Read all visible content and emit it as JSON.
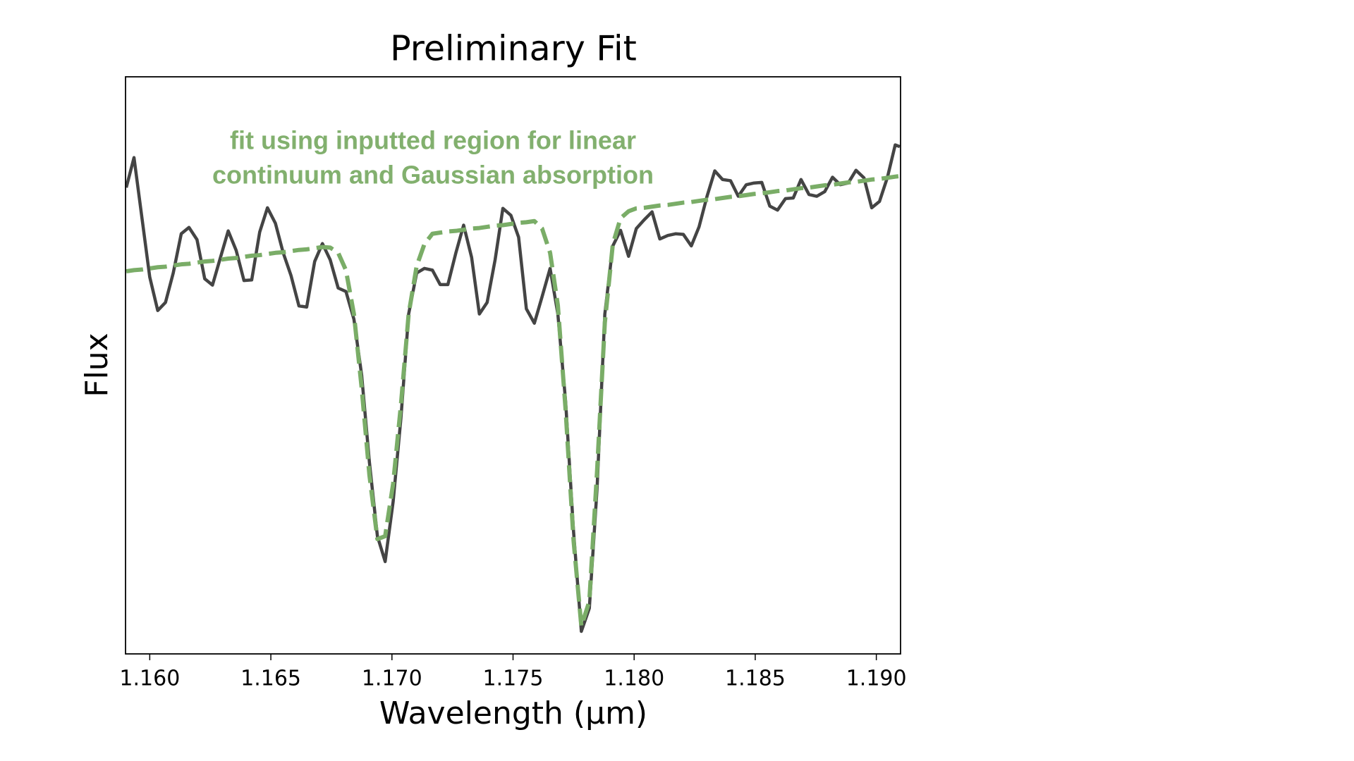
{
  "chart_data": {
    "type": "line",
    "title": "Preliminary Fit",
    "xlabel": "Wavelength (µm)",
    "ylabel": "Flux",
    "annotation": [
      "fit using inputted region for linear",
      "continuum and Gaussian absorption"
    ],
    "annotation_color": "#82b06e",
    "x": [
      1.15903,
      1.15935,
      1.15968,
      1.16,
      1.16033,
      1.16065,
      1.16097,
      1.1613,
      1.16162,
      1.16195,
      1.16227,
      1.16259,
      1.16292,
      1.16324,
      1.16357,
      1.16389,
      1.16421,
      1.16454,
      1.16486,
      1.16519,
      1.16551,
      1.16583,
      1.16616,
      1.16648,
      1.16681,
      1.16713,
      1.16745,
      1.16778,
      1.1681,
      1.16843,
      1.16875,
      1.16907,
      1.1694,
      1.16972,
      1.17005,
      1.17037,
      1.17069,
      1.17102,
      1.17134,
      1.17167,
      1.17199,
      1.17231,
      1.17264,
      1.17296,
      1.17329,
      1.17361,
      1.17393,
      1.17426,
      1.17458,
      1.17491,
      1.17523,
      1.17555,
      1.17588,
      1.1762,
      1.17653,
      1.17685,
      1.17717,
      1.1775,
      1.17782,
      1.17815,
      1.17847,
      1.17879,
      1.17912,
      1.17944,
      1.17977,
      1.18009,
      1.18041,
      1.18074,
      1.18106,
      1.18139,
      1.18171,
      1.18203,
      1.18236,
      1.18268,
      1.18301,
      1.18333,
      1.18365,
      1.18398,
      1.1843,
      1.18463,
      1.18495,
      1.18527,
      1.1856,
      1.18592,
      1.18625,
      1.18657,
      1.18689,
      1.18722,
      1.18754,
      1.18787,
      1.18819,
      1.18851,
      1.18884,
      1.18916,
      1.18949,
      1.18981,
      1.19013,
      1.19046,
      1.19078,
      1.19097
    ],
    "series": [
      {
        "color": "#444444",
        "dashed": false,
        "values": [
          0.808,
          0.86,
          0.755,
          0.653,
          0.595,
          0.609,
          0.66,
          0.728,
          0.739,
          0.718,
          0.65,
          0.639,
          0.687,
          0.733,
          0.699,
          0.647,
          0.648,
          0.731,
          0.773,
          0.746,
          0.695,
          0.656,
          0.603,
          0.601,
          0.68,
          0.711,
          0.683,
          0.634,
          0.628,
          0.58,
          0.483,
          0.332,
          0.204,
          0.16,
          0.264,
          0.408,
          0.589,
          0.66,
          0.668,
          0.665,
          0.64,
          0.64,
          0.695,
          0.743,
          0.687,
          0.589,
          0.609,
          0.683,
          0.772,
          0.76,
          0.722,
          0.598,
          0.573,
          0.619,
          0.668,
          0.589,
          0.438,
          0.211,
          0.039,
          0.079,
          0.287,
          0.589,
          0.707,
          0.734,
          0.689,
          0.737,
          0.752,
          0.766,
          0.719,
          0.725,
          0.728,
          0.727,
          0.707,
          0.74,
          0.793,
          0.837,
          0.822,
          0.82,
          0.793,
          0.813,
          0.816,
          0.817,
          0.776,
          0.769,
          0.789,
          0.79,
          0.822,
          0.796,
          0.793,
          0.801,
          0.826,
          0.813,
          0.816,
          0.838,
          0.825,
          0.773,
          0.784,
          0.826,
          0.882,
          0.879
        ]
      },
      {
        "color": "#7aad67",
        "dashed": true,
        "values": [
          0.663,
          0.665,
          0.666,
          0.668,
          0.67,
          0.671,
          0.673,
          0.675,
          0.676,
          0.678,
          0.68,
          0.681,
          0.683,
          0.685,
          0.686,
          0.688,
          0.69,
          0.691,
          0.693,
          0.695,
          0.696,
          0.698,
          0.7,
          0.701,
          0.703,
          0.705,
          0.704,
          0.695,
          0.665,
          0.589,
          0.461,
          0.31,
          0.199,
          0.204,
          0.295,
          0.431,
          0.589,
          0.672,
          0.71,
          0.728,
          0.73,
          0.732,
          0.733,
          0.735,
          0.737,
          0.738,
          0.74,
          0.742,
          0.743,
          0.745,
          0.747,
          0.748,
          0.75,
          0.737,
          0.695,
          0.604,
          0.423,
          0.196,
          0.048,
          0.091,
          0.317,
          0.574,
          0.71,
          0.755,
          0.767,
          0.772,
          0.773,
          0.775,
          0.777,
          0.778,
          0.78,
          0.782,
          0.783,
          0.785,
          0.787,
          0.788,
          0.79,
          0.792,
          0.793,
          0.795,
          0.797,
          0.798,
          0.8,
          0.802,
          0.803,
          0.805,
          0.807,
          0.808,
          0.81,
          0.812,
          0.813,
          0.815,
          0.817,
          0.818,
          0.82,
          0.822,
          0.823,
          0.825,
          0.827,
          0.828
        ]
      }
    ],
    "xlim": [
      1.159,
      1.191
    ],
    "ylim": [
      0,
      1
    ],
    "xticks": [
      {
        "value": 1.16,
        "label": "1.160"
      },
      {
        "value": 1.165,
        "label": "1.165"
      },
      {
        "value": 1.17,
        "label": "1.170"
      },
      {
        "value": 1.175,
        "label": "1.175"
      },
      {
        "value": 1.18,
        "label": "1.180"
      },
      {
        "value": 1.185,
        "label": "1.185"
      },
      {
        "value": 1.19,
        "label": "1.190"
      }
    ]
  }
}
